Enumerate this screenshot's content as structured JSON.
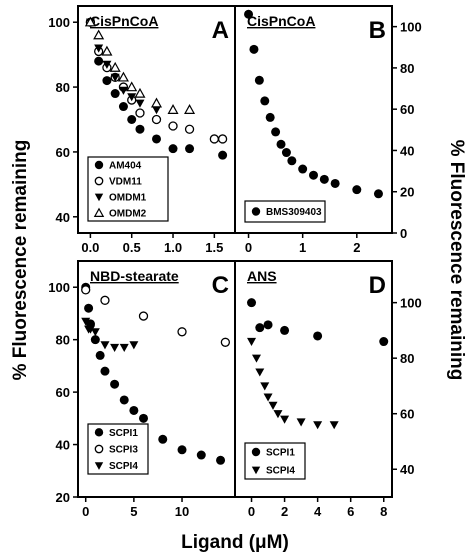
{
  "figure": {
    "ylabel_left": "% Fluorescence remaining",
    "ylabel_right": "% Fluorescence remaining",
    "xlabel": "Ligand (μM)"
  },
  "chart_data": [
    {
      "panel": "A",
      "type": "scatter",
      "title": "CisPnCoA",
      "panel_label": "A",
      "xlim": [
        -0.15,
        1.75
      ],
      "ylim": [
        35,
        105
      ],
      "xticks": [
        0.0,
        0.5,
        1.0,
        1.5
      ],
      "xtick_labels": [
        "0.0",
        "0.5",
        "1.0",
        "1.5"
      ],
      "yticks": [
        40,
        60,
        80,
        100
      ],
      "ytick_labels": [
        "40",
        "60",
        "80",
        "100"
      ],
      "ytick_side": "left",
      "legend_position": "bottom-left",
      "series": [
        {
          "name": "AM404",
          "marker": "circle-filled",
          "x": [
            0.0,
            0.1,
            0.2,
            0.3,
            0.4,
            0.5,
            0.6,
            0.8,
            1.0,
            1.2,
            1.6
          ],
          "y": [
            100,
            88,
            82,
            78,
            74,
            70,
            67,
            64,
            61,
            61,
            59
          ]
        },
        {
          "name": "VDM11",
          "marker": "circle-open",
          "x": [
            0.0,
            0.1,
            0.2,
            0.3,
            0.4,
            0.5,
            0.6,
            0.8,
            1.0,
            1.2,
            1.5,
            1.6
          ],
          "y": [
            100,
            91,
            86,
            83,
            80,
            76,
            72,
            70,
            68,
            67,
            64,
            64
          ]
        },
        {
          "name": "OMDM1",
          "marker": "triangle-down-filled",
          "x": [
            0.0,
            0.1,
            0.2,
            0.3,
            0.4,
            0.5,
            0.6,
            0.8
          ],
          "y": [
            100,
            92,
            87,
            83,
            79,
            77,
            75,
            73
          ]
        },
        {
          "name": "OMDM2",
          "marker": "triangle-up-open",
          "x": [
            0.0,
            0.1,
            0.2,
            0.3,
            0.4,
            0.5,
            0.6,
            0.8,
            1.0,
            1.2
          ],
          "y": [
            100,
            96,
            91,
            86,
            83,
            80,
            78,
            75,
            73,
            73
          ]
        }
      ]
    },
    {
      "panel": "B",
      "type": "scatter",
      "title": "CisPnCoA",
      "panel_label": "B",
      "xlim": [
        -0.25,
        2.65
      ],
      "ylim": [
        0,
        110
      ],
      "xticks": [
        0,
        1,
        2
      ],
      "xtick_labels": [
        "0",
        "1",
        "2"
      ],
      "yticks": [
        0,
        20,
        40,
        60,
        80,
        100
      ],
      "ytick_labels": [
        "0",
        "20",
        "40",
        "60",
        "80",
        "100"
      ],
      "ytick_side": "right",
      "legend_position": "bottom-left",
      "series": [
        {
          "name": "BMS309403",
          "marker": "circle-filled",
          "x": [
            0.0,
            0.1,
            0.2,
            0.3,
            0.4,
            0.5,
            0.6,
            0.7,
            0.8,
            1.0,
            1.2,
            1.4,
            1.6,
            2.0,
            2.4
          ],
          "y": [
            106,
            89,
            74,
            64,
            56,
            49,
            43,
            39,
            35,
            31,
            28,
            26,
            24,
            21,
            19
          ]
        }
      ]
    },
    {
      "panel": "C",
      "type": "scatter",
      "title": "NBD-stearate",
      "panel_label": "C",
      "xlim": [
        -0.8,
        15.5
      ],
      "ylim": [
        20,
        110
      ],
      "xticks": [
        0,
        5,
        10
      ],
      "xtick_labels": [
        "0",
        "5",
        "10"
      ],
      "yticks": [
        20,
        40,
        60,
        80,
        100
      ],
      "ytick_labels": [
        "20",
        "40",
        "60",
        "80",
        "100"
      ],
      "ytick_side": "left",
      "legend_position": "bottom-left",
      "series": [
        {
          "name": "SCPI1",
          "marker": "circle-filled",
          "x": [
            0.0,
            0.3,
            0.5,
            1.0,
            1.5,
            2.0,
            3.0,
            4.0,
            5.0,
            6.0,
            8.0,
            10.0,
            12.0,
            14.0
          ],
          "y": [
            100,
            92,
            86,
            80,
            74,
            68,
            63,
            57,
            53,
            50,
            42,
            38,
            36,
            34
          ]
        },
        {
          "name": "SCPI3",
          "marker": "circle-open",
          "x": [
            0.0,
            2.0,
            6.0,
            10.0,
            14.5
          ],
          "y": [
            99,
            95,
            89,
            83,
            79
          ]
        },
        {
          "name": "SCPI4",
          "marker": "triangle-down-filled",
          "x": [
            0.0,
            0.3,
            0.5,
            1.0,
            2.0,
            3.0,
            4.0,
            5.0
          ],
          "y": [
            87,
            84,
            84,
            83,
            78,
            77,
            77,
            78
          ]
        }
      ]
    },
    {
      "panel": "D",
      "type": "scatter",
      "title": "ANS",
      "panel_label": "D",
      "xlim": [
        -1.0,
        8.5
      ],
      "ylim": [
        30,
        115
      ],
      "xticks": [
        0,
        2,
        4,
        6,
        8
      ],
      "xtick_labels": [
        "0",
        "2",
        "4",
        "6",
        "8"
      ],
      "yticks": [
        40,
        60,
        80,
        100
      ],
      "ytick_labels": [
        "40",
        "60",
        "80",
        "100"
      ],
      "ytick_side": "right",
      "legend_position": "bottom-left",
      "series": [
        {
          "name": "SCPI1",
          "marker": "circle-filled",
          "x": [
            0.0,
            0.5,
            1.0,
            2.0,
            4.0,
            8.0
          ],
          "y": [
            100,
            91,
            92,
            90,
            88,
            86
          ]
        },
        {
          "name": "SCPI4",
          "marker": "triangle-down-filled",
          "x": [
            0.0,
            0.3,
            0.5,
            0.8,
            1.0,
            1.3,
            1.6,
            2.0,
            3.0,
            4.0,
            5.0
          ],
          "y": [
            86,
            80,
            75,
            70,
            66,
            63,
            60,
            58,
            57,
            56,
            56
          ]
        }
      ]
    }
  ]
}
